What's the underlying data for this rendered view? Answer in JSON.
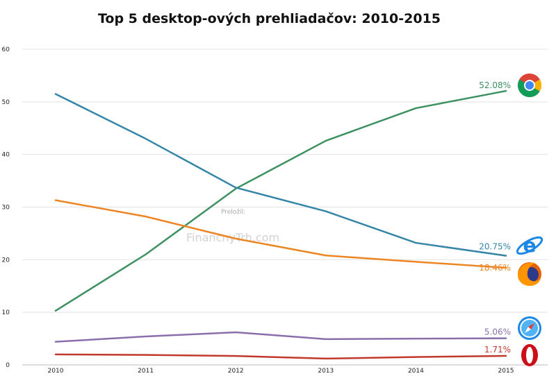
{
  "chart_data": {
    "type": "line",
    "title": "Top 5 desktop-ových prehliadačov: 2010-2015",
    "x": [
      2010,
      2011,
      2012,
      2013,
      2014,
      2015
    ],
    "ylim": [
      0,
      60
    ],
    "yticks": [
      0,
      10,
      20,
      30,
      40,
      50,
      60
    ],
    "grid": true,
    "series": [
      {
        "icon": "chrome-icon",
        "color": "#3d9160",
        "values": [
          10.3,
          21.0,
          33.5,
          42.6,
          48.8,
          52.08
        ],
        "end_label": "52.08%"
      },
      {
        "icon": "internet-explorer-icon",
        "color": "#3485a8",
        "values": [
          51.5,
          43.0,
          33.7,
          29.2,
          23.2,
          20.75
        ],
        "end_label": "20.75%"
      },
      {
        "icon": "firefox-icon",
        "color": "#ec8524",
        "values": [
          31.3,
          28.2,
          24.0,
          20.8,
          19.6,
          18.46
        ],
        "end_label": "18.46%"
      },
      {
        "icon": "safari-icon",
        "color": "#8a6eab",
        "values": [
          4.4,
          5.4,
          6.2,
          4.9,
          5.0,
          5.06
        ],
        "end_label": "5.06%"
      },
      {
        "icon": "opera-icon",
        "color": "#c0392b",
        "values": [
          2.0,
          1.9,
          1.7,
          1.2,
          1.5,
          1.71
        ],
        "end_label": "1.71%"
      }
    ]
  },
  "watermark": {
    "line1": "Preložil:",
    "line2": "FinancnyTrh.com"
  }
}
